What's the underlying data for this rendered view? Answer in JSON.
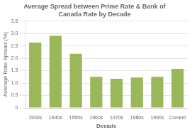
{
  "chart_data": {
    "type": "bar",
    "title": "Average Spread between Prime Rate & Bank of\nCanada Rate by Decade",
    "xlabel": "Decade",
    "ylabel": "Average Rate Spread (%)",
    "categories": [
      "1930s",
      "1940s",
      "1950s",
      "1960s",
      "1970s",
      "1980s",
      "1990s",
      "Current"
    ],
    "values": [
      2.63,
      2.9,
      2.18,
      1.25,
      1.17,
      1.22,
      1.25,
      1.57
    ],
    "color": "#9ab85a",
    "ylim": [
      0,
      3.5
    ],
    "yticks": [
      0,
      0.5,
      {
        "value": 1.0,
        "label": "1.0"
      },
      1.5,
      {
        "value": 2.0,
        "label": "2.0"
      },
      2.5,
      {
        "value": 3.0,
        "label": "3.0"
      },
      3.5
    ],
    "grid": true
  }
}
